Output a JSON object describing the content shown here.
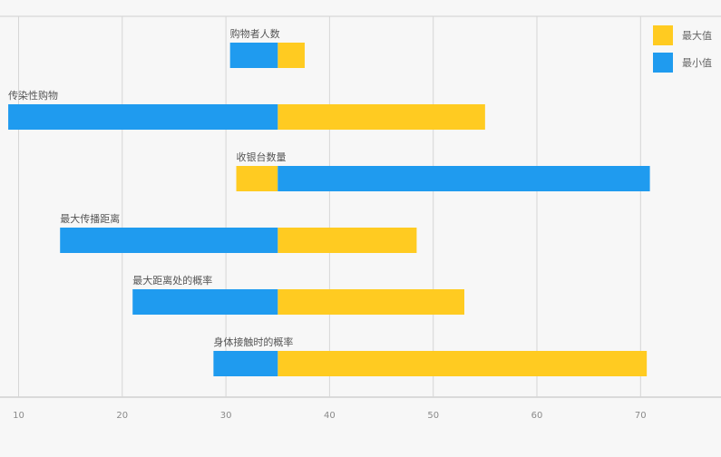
{
  "chart_data": {
    "type": "bar",
    "orientation": "horizontal",
    "baseline": 35,
    "xlim": [
      9,
      76
    ],
    "x_ticks": [
      10,
      20,
      30,
      40,
      50,
      60,
      70
    ],
    "x_tick_labels": [
      "10",
      "20",
      "30",
      "40",
      "50",
      "60",
      "70"
    ],
    "grid": true,
    "legend_position": "top-right",
    "categories": [
      "购物者人数",
      "传染性购物",
      "收银台数量",
      "最大传播距离",
      "最大距离处的概率",
      "身体接触时的概率"
    ],
    "series": [
      {
        "name": "最大值",
        "color": "#ffcb21",
        "values": [
          37.6,
          55.0,
          31.0,
          48.4,
          53.0,
          70.6
        ]
      },
      {
        "name": "最小值",
        "color": "#1f9bef",
        "values": [
          30.4,
          9.0,
          70.9,
          14.0,
          21.0,
          28.8
        ]
      }
    ]
  }
}
